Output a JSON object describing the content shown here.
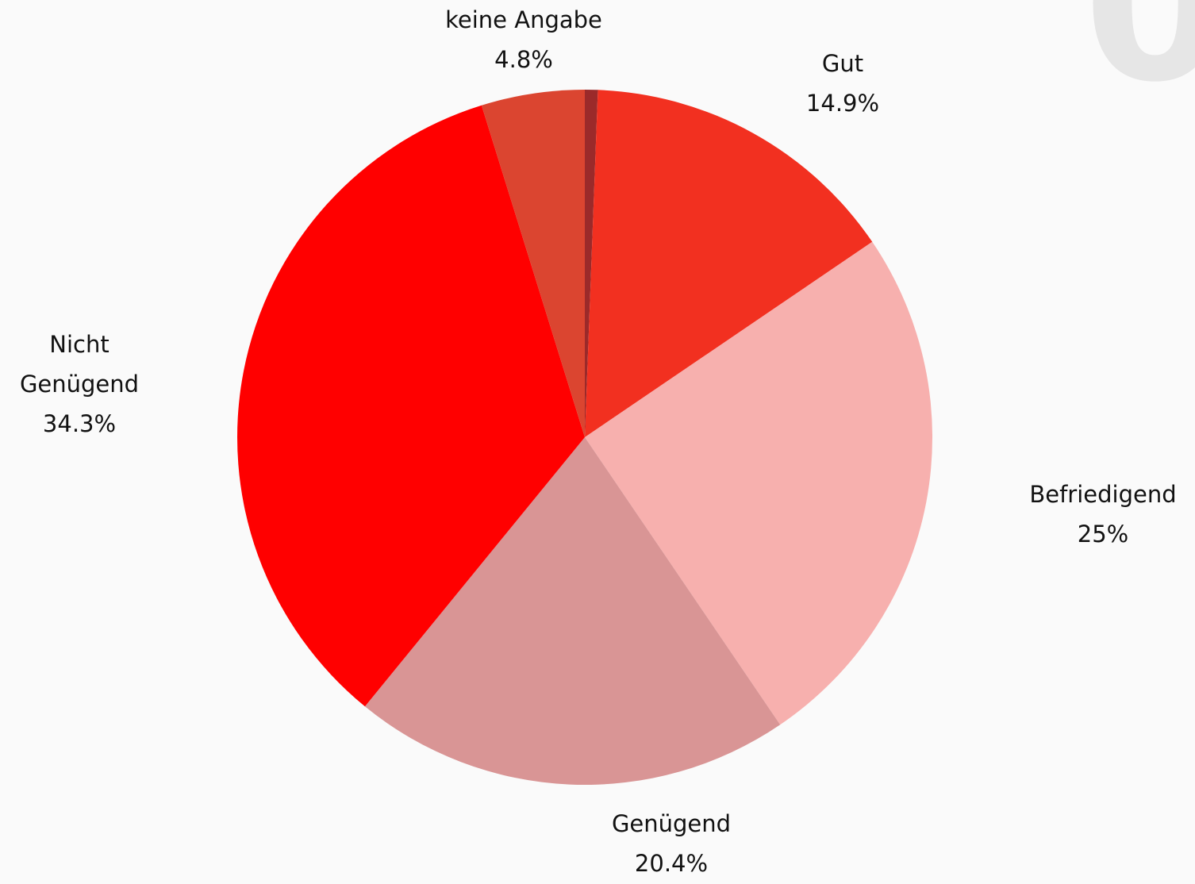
{
  "chart_data": {
    "type": "pie",
    "categories": [
      null,
      "Gut",
      "Befriedigend",
      "Genügend",
      "Nicht Genügend",
      "keine Angabe"
    ],
    "values": [
      0.6,
      14.9,
      25,
      20.4,
      34.3,
      4.8
    ],
    "value_labels": [
      null,
      "14.9%",
      "25%",
      "20.4%",
      "34.3%",
      "4.8%"
    ],
    "colors": [
      "#9b2a2a",
      "#f23020",
      "#f7b0ae",
      "#d99595",
      "#ff0000",
      "#db4530"
    ],
    "corner_text": "0"
  }
}
